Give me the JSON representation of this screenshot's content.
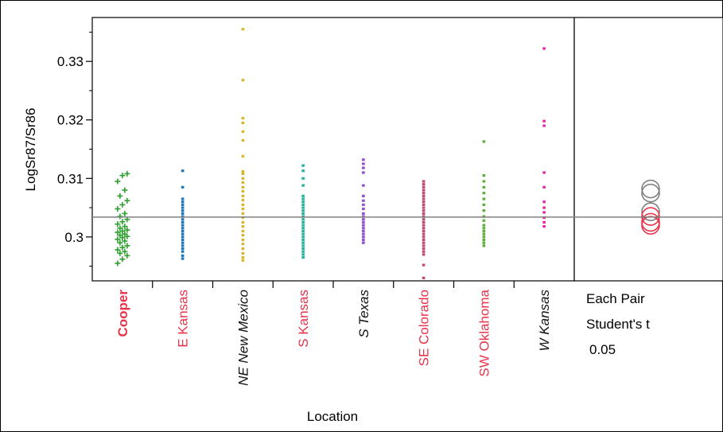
{
  "chart_data": {
    "type": "scatter",
    "ylabel": "LogSr87/Sr86",
    "xlabel": "Location",
    "ylim": [
      0.2925,
      0.3375
    ],
    "yticks": [
      0.3,
      0.31,
      0.32,
      0.33
    ],
    "ytick_labels": [
      "0.3",
      "0.31",
      "0.32",
      "0.33"
    ],
    "grand_mean": 0.3034,
    "categories": [
      {
        "label": "Cooper",
        "color": "#2ca02c",
        "label_color": "#e8334a",
        "label_bold": true,
        "label_italic": false,
        "marker": "plus",
        "values": [
          0.2955,
          0.2962,
          0.2968,
          0.2972,
          0.2975,
          0.2978,
          0.2982,
          0.2985,
          0.299,
          0.2993,
          0.2996,
          0.2999,
          0.3001,
          0.3003,
          0.3005,
          0.3008,
          0.301,
          0.3012,
          0.3015,
          0.3018,
          0.3022,
          0.3026,
          0.303,
          0.3035,
          0.304,
          0.3048,
          0.3055,
          0.3062,
          0.307,
          0.308,
          0.3095,
          0.3105,
          0.3108
        ]
      },
      {
        "label": "E Kansas",
        "color": "#1f77b4",
        "label_color": "#e8334a",
        "label_bold": false,
        "label_italic": false,
        "marker": "dash",
        "values": [
          0.2963,
          0.2968,
          0.2975,
          0.298,
          0.2985,
          0.299,
          0.2995,
          0.3,
          0.3005,
          0.301,
          0.3015,
          0.302,
          0.3025,
          0.303,
          0.3035,
          0.304,
          0.3045,
          0.305,
          0.3055,
          0.306,
          0.3065,
          0.3085,
          0.3113
        ]
      },
      {
        "label": "NE New Mexico",
        "color": "#d4b82a",
        "label_color": "#111111",
        "label_bold": false,
        "label_italic": true,
        "marker": "dash",
        "values": [
          0.296,
          0.2965,
          0.2972,
          0.298,
          0.2988,
          0.2995,
          0.3003,
          0.301,
          0.3018,
          0.3025,
          0.3033,
          0.304,
          0.3048,
          0.3055,
          0.3063,
          0.307,
          0.3078,
          0.3085,
          0.3093,
          0.31,
          0.3108,
          0.3112,
          0.3138,
          0.3165,
          0.318,
          0.3195,
          0.3203,
          0.3268,
          0.3355
        ]
      },
      {
        "label": "S Kansas",
        "color": "#1fb59a",
        "label_color": "#e8334a",
        "label_bold": false,
        "label_italic": false,
        "marker": "dash",
        "values": [
          0.2965,
          0.297,
          0.2975,
          0.298,
          0.2985,
          0.299,
          0.2995,
          0.3,
          0.3005,
          0.301,
          0.3015,
          0.302,
          0.3025,
          0.303,
          0.3035,
          0.304,
          0.3045,
          0.305,
          0.3055,
          0.306,
          0.3065,
          0.307,
          0.3088,
          0.31,
          0.3113,
          0.3122
        ]
      },
      {
        "label": "S Texas",
        "color": "#8e4fd1",
        "label_color": "#111111",
        "label_bold": false,
        "label_italic": true,
        "marker": "dash",
        "values": [
          0.299,
          0.2995,
          0.3,
          0.3005,
          0.301,
          0.3015,
          0.302,
          0.3025,
          0.303,
          0.3035,
          0.304,
          0.3048,
          0.3055,
          0.3062,
          0.307,
          0.3088,
          0.311,
          0.3118,
          0.3125,
          0.3132
        ]
      },
      {
        "label": "SE Colorado",
        "color": "#c2496e",
        "label_color": "#e8334a",
        "label_bold": false,
        "label_italic": false,
        "marker": "dash",
        "values": [
          0.293,
          0.2952,
          0.297,
          0.2975,
          0.298,
          0.2985,
          0.299,
          0.2995,
          0.3,
          0.3005,
          0.301,
          0.3015,
          0.302,
          0.3025,
          0.303,
          0.3035,
          0.304,
          0.3045,
          0.305,
          0.3055,
          0.306,
          0.3065,
          0.307,
          0.3075,
          0.308,
          0.3085,
          0.309,
          0.3095
        ]
      },
      {
        "label": "SW Oklahoma",
        "color": "#5cae3a",
        "label_color": "#e8334a",
        "label_bold": false,
        "label_italic": false,
        "marker": "dash",
        "values": [
          0.2985,
          0.299,
          0.2995,
          0.3,
          0.3005,
          0.301,
          0.3015,
          0.302,
          0.3028,
          0.3035,
          0.3045,
          0.3055,
          0.3065,
          0.3075,
          0.3085,
          0.3095,
          0.3105,
          0.3163
        ]
      },
      {
        "label": "W Kansas",
        "color": "#e02aa8",
        "label_color": "#111111",
        "label_bold": false,
        "label_italic": true,
        "marker": "dash",
        "values": [
          0.3018,
          0.3025,
          0.3033,
          0.3042,
          0.305,
          0.306,
          0.3085,
          0.311,
          0.319,
          0.3198,
          0.3322
        ]
      }
    ],
    "comparison_circles": [
      {
        "center": 0.3082,
        "color": "#808080"
      },
      {
        "center": 0.3075,
        "color": "#808080"
      },
      {
        "center": 0.3043,
        "color": "#808080"
      },
      {
        "center": 0.3035,
        "color": "#e8334a"
      },
      {
        "center": 0.3025,
        "color": "#e8334a"
      },
      {
        "center": 0.302,
        "color": "#e8334a"
      }
    ],
    "comparison_label": [
      "Each Pair",
      "Student's t",
      "0.05"
    ]
  }
}
